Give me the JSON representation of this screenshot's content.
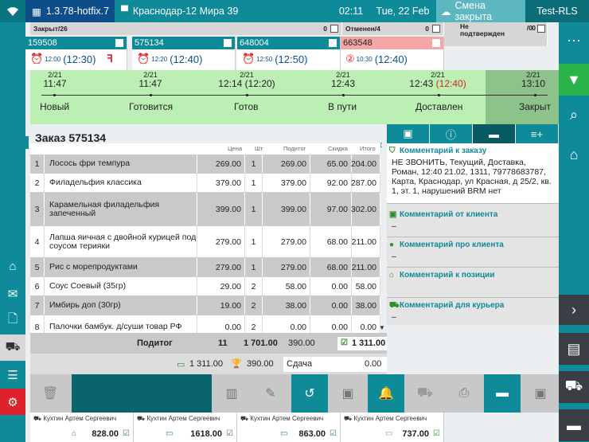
{
  "topbar": {
    "version": "1.3.78-hotfix.7",
    "store": "Краснодар-12 Мира 39",
    "time": "02:11",
    "date": "Tue, 22 Feb",
    "shift": "Смена закрыта",
    "user": "Test-RLS"
  },
  "tabs": [
    {
      "label": "Закрыт/26",
      "count": "0"
    },
    {
      "label": "Отменен/4",
      "count": "0"
    },
    {
      "label": "Не подтвержден",
      "count": "/0",
      "sub": "0"
    }
  ],
  "cards": [
    {
      "id": "159508",
      "small": "12:00",
      "time": "(12:30)"
    },
    {
      "id": "575134",
      "small": "12:20",
      "time": "(12:40)"
    },
    {
      "id": "648004",
      "small": "12:50",
      "time": "(12:50)"
    },
    {
      "id": "663548",
      "small": "10:30",
      "time": "(12:40)"
    }
  ],
  "timeline": [
    {
      "date": "2/21",
      "time": "11:47",
      "red": "",
      "name": "Новый"
    },
    {
      "date": "2/21",
      "time": "11:47",
      "red": "",
      "name": "Готовится"
    },
    {
      "date": "2/21",
      "time": "12:14 (12:20)",
      "red": "",
      "name": "Готов"
    },
    {
      "date": "2/21",
      "time": "12:43",
      "red": "",
      "name": "В пути"
    },
    {
      "date": "2/21",
      "time": "12:43",
      "red": "(12:40)",
      "name": "Доставлен"
    },
    {
      "date": "2/21",
      "time": "13:10",
      "red": "",
      "name": "Закрыт"
    }
  ],
  "order": {
    "title": "Заказ 575134",
    "headers": [
      "Цена",
      "Шт",
      "Подитог",
      "Скидка",
      "Итого"
    ],
    "rows": [
      {
        "n": "1",
        "name": "Лосось фри темпура",
        "price": "269.00",
        "qty": "1",
        "sub": "269.00",
        "disc": "65.00",
        "total": "204.00"
      },
      {
        "n": "2",
        "name": "Филадельфия классика",
        "price": "379.00",
        "qty": "1",
        "sub": "379.00",
        "disc": "92.00",
        "total": "287.00"
      },
      {
        "n": "3",
        "name": "Карамельная филадельфия запеченный",
        "price": "399.00",
        "qty": "1",
        "sub": "399.00",
        "disc": "97.00",
        "total": "302.00"
      },
      {
        "n": "4",
        "name": "Лапша яичная с двойной курицей под соусом терияки",
        "price": "279.00",
        "qty": "1",
        "sub": "279.00",
        "disc": "68.00",
        "total": "211.00"
      },
      {
        "n": "5",
        "name": "Рис с морепродуктами",
        "price": "279.00",
        "qty": "1",
        "sub": "279.00",
        "disc": "68.00",
        "total": "211.00"
      },
      {
        "n": "6",
        "name": "Соус Соевый (35гр)",
        "price": "29.00",
        "qty": "2",
        "sub": "58.00",
        "disc": "0.00",
        "total": "58.00"
      },
      {
        "n": "7",
        "name": "Имбирь доп (30гр)",
        "price": "19.00",
        "qty": "2",
        "sub": "38.00",
        "disc": "0.00",
        "total": "38.00"
      },
      {
        "n": "8",
        "name": "Палочки бамбук. д/суши товар РФ",
        "price": "0.00",
        "qty": "2",
        "sub": "0.00",
        "disc": "0.00",
        "total": "0.00"
      }
    ],
    "subtotal_label": "Подитог",
    "subtotal_qty": "11",
    "subtotal_sub": "1 701.00",
    "subtotal_disc": "390.00",
    "subtotal_total": "1 311.00",
    "paid_card": "1 311.00",
    "bonus": "390.00",
    "change_label": "Сдача",
    "change": "0.00"
  },
  "comments": [
    {
      "title": "Комментарий к заказу",
      "body": "НЕ ЗВОНИТЬ, Текущий, Доставка, Роман, 12:40 21.02, 1311, 79778683787, Карта, Краснодар, ул Красная, д 25/2, кв. 1, эт. 1, нарушений BRM нет"
    },
    {
      "title": "Комментарий от клиента",
      "body": "–"
    },
    {
      "title": "Комментарий про клиента",
      "body": "–"
    },
    {
      "title": "Комментарий к позиции",
      "body": ""
    },
    {
      "title": "Комментарий для курьера",
      "body": "–"
    }
  ],
  "bottom_cards": [
    {
      "name": "Кухтин Артем Сергеевич",
      "sum": "828.00"
    },
    {
      "name": "Кухтин Артем Сергеевич",
      "sum": "1618.00"
    },
    {
      "name": "Кухтин Артем Сергеевич",
      "sum": "863.00"
    },
    {
      "name": "Кухтин Артем Сергеевич",
      "sum": "737.00"
    }
  ],
  "colors": {
    "teal": "#0f8a98",
    "dark_blue": "#0d4e8a",
    "timeline": "#bcefb3",
    "red": "#e0202a"
  }
}
